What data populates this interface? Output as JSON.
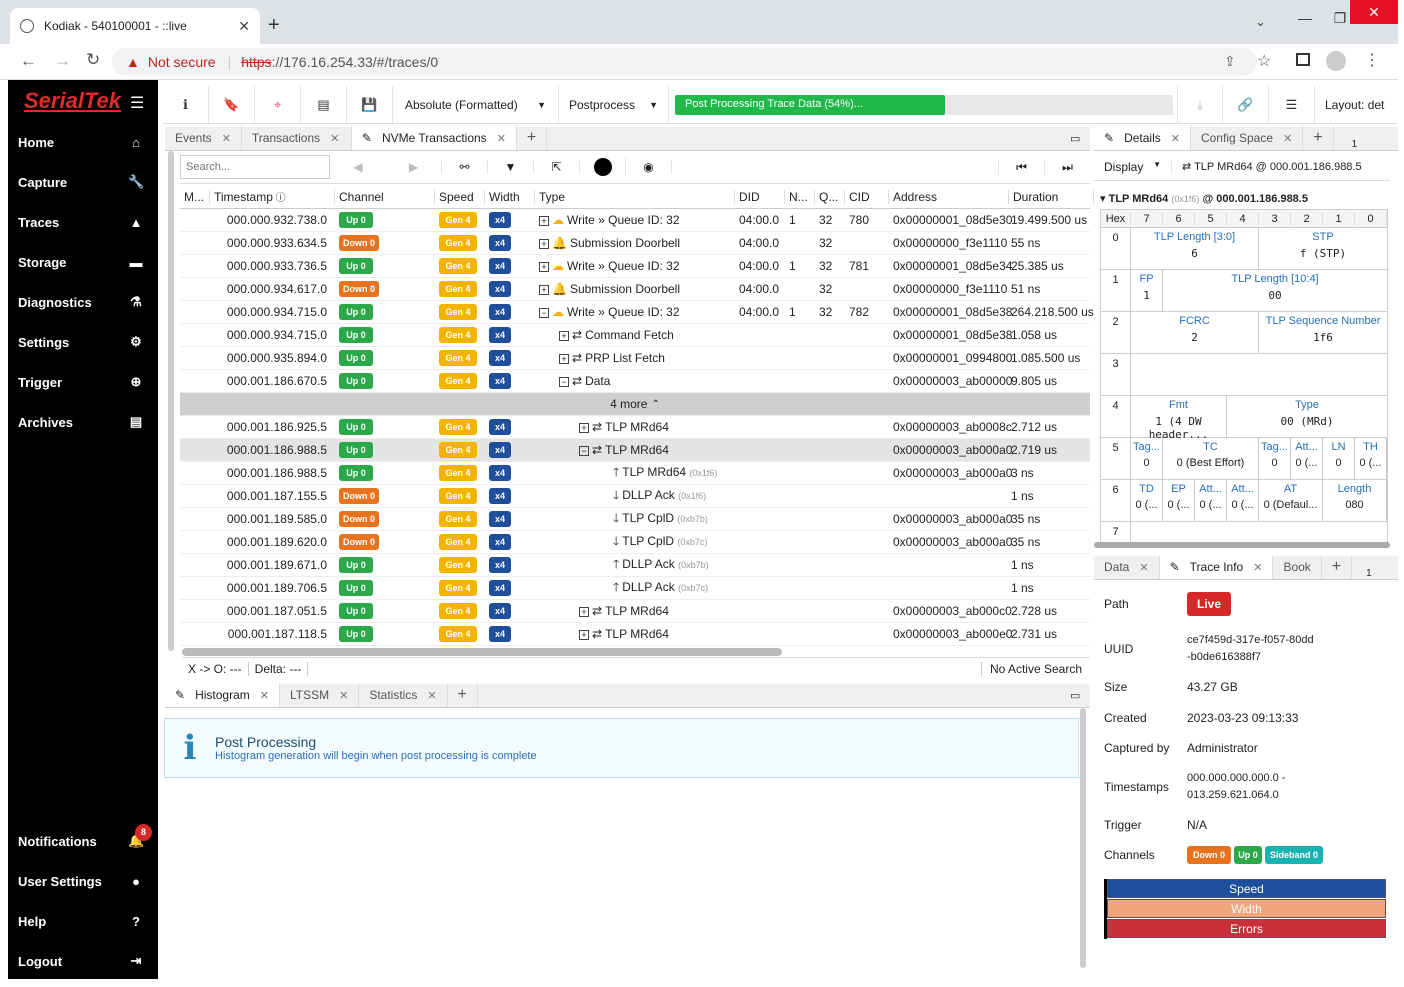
{
  "browser": {
    "tab_title": "Kodiak - 540100001 - ::live",
    "new_tab": "+",
    "not_secure": "Not secure",
    "url_scheme": "https",
    "url_rest": "://176.16.254.33/#/traces/0"
  },
  "sidebar": {
    "logo": "SerialTek",
    "menu_icon": "☰",
    "items": [
      {
        "label": "Home",
        "icon": "home-icon"
      },
      {
        "label": "Capture",
        "icon": "wrench-icon"
      },
      {
        "label": "Traces",
        "icon": "chart-icon"
      },
      {
        "label": "Storage",
        "icon": "drive-icon"
      },
      {
        "label": "Diagnostics",
        "icon": "flask-icon"
      },
      {
        "label": "Settings",
        "icon": "gear-icon"
      },
      {
        "label": "Trigger",
        "icon": "crosshair-icon"
      },
      {
        "label": "Archives",
        "icon": "archive-icon"
      }
    ],
    "bottom": [
      {
        "label": "Notifications",
        "icon": "bell-icon",
        "count": "8"
      },
      {
        "label": "User Settings",
        "icon": "user-icon"
      },
      {
        "label": "Help",
        "icon": "help-icon"
      },
      {
        "label": "Logout",
        "icon": "logout-icon"
      }
    ]
  },
  "toolbar": {
    "timestamp_mode": "Absolute (Formatted)",
    "postprocess": "Postprocess",
    "progress_text": "Post Processing Trace Data (54%)...",
    "progress": 0.54,
    "layout": "Layout: det"
  },
  "trace_tabs": [
    {
      "label": "Events"
    },
    {
      "label": "Transactions"
    },
    {
      "label": "NVMe Transactions"
    }
  ],
  "search": {
    "placeholder": "Search..."
  },
  "columns": [
    "M...",
    "Timestamp",
    "Channel",
    "Speed",
    "Width",
    "Type",
    "DID",
    "N...",
    "Q...",
    "CID",
    "Address",
    "Duration"
  ],
  "rows": [
    {
      "ts": "000.000.932.738.0",
      "ch": "Up 0",
      "sp": "Gen 4",
      "w": "x4",
      "type": "Write » Queue ID: 32",
      "exp": "+",
      "icon": "cloud",
      "did": "04:00.0",
      "n": "1",
      "q": "32",
      "cid": "780",
      "addr": "0x00000001_08d5e30",
      "dur": "19.499.500 us"
    },
    {
      "ts": "000.000.933.634.5",
      "ch": "Down 0",
      "sp": "Gen 4",
      "w": "x4",
      "type": "Submission Doorbell",
      "exp": "+",
      "icon": "bell",
      "did": "04:00.0",
      "n": "",
      "q": "32",
      "cid": "",
      "addr": "0x00000000_f3e1110",
      "dur": "55 ns"
    },
    {
      "ts": "000.000.933.736.5",
      "ch": "Up 0",
      "sp": "Gen 4",
      "w": "x4",
      "type": "Write » Queue ID: 32",
      "exp": "+",
      "icon": "cloud",
      "did": "04:00.0",
      "n": "1",
      "q": "32",
      "cid": "781",
      "addr": "0x00000001_08d5e34",
      "dur": "25.385 us"
    },
    {
      "ts": "000.000.934.617.0",
      "ch": "Down 0",
      "sp": "Gen 4",
      "w": "x4",
      "type": "Submission Doorbell",
      "exp": "+",
      "icon": "bell",
      "did": "04:00.0",
      "n": "",
      "q": "32",
      "cid": "",
      "addr": "0x00000000_f3e1110",
      "dur": "51 ns"
    },
    {
      "ts": "000.000.934.715.0",
      "ch": "Up 0",
      "sp": "Gen 4",
      "w": "x4",
      "type": "Write » Queue ID: 32",
      "exp": "−",
      "icon": "cloud",
      "did": "04:00.0",
      "n": "1",
      "q": "32",
      "cid": "782",
      "addr": "0x00000001_08d5e38",
      "dur": "264.218.500 us"
    },
    {
      "ts": "000.000.934.715.0",
      "ch": "Up 0",
      "sp": "Gen 4",
      "w": "x4",
      "type": "Command Fetch",
      "exp": "+",
      "icon": "swap",
      "indent": 1,
      "did": "",
      "n": "",
      "q": "",
      "cid": "",
      "addr": "0x00000001_08d5e38",
      "dur": "1.058 us"
    },
    {
      "ts": "000.000.935.894.0",
      "ch": "Up 0",
      "sp": "Gen 4",
      "w": "x4",
      "type": "PRP List Fetch",
      "exp": "+",
      "icon": "swap",
      "indent": 1,
      "did": "",
      "n": "",
      "q": "",
      "cid": "",
      "addr": "0x00000001_0994800",
      "dur": "1.085.500 us"
    },
    {
      "ts": "000.001.186.670.5",
      "ch": "Up 0",
      "sp": "Gen 4",
      "w": "x4",
      "type": "Data",
      "exp": "−",
      "icon": "swap",
      "indent": 1,
      "did": "",
      "n": "",
      "q": "",
      "cid": "",
      "addr": "0x00000003_ab00000",
      "dur": "9.805 us"
    }
  ],
  "more_label": "4 more",
  "rows2": [
    {
      "ts": "000.001.186.925.5",
      "ch": "Up 0",
      "sp": "Gen 4",
      "w": "x4",
      "type": "TLP MRd64",
      "exp": "+",
      "icon": "swap",
      "indent": 2,
      "sub": "",
      "addr": "0x00000003_ab0008c",
      "dur": "2.712 us"
    },
    {
      "ts": "000.001.186.988.5",
      "ch": "Up 0",
      "sp": "Gen 4",
      "w": "x4",
      "type": "TLP MRd64",
      "exp": "−",
      "icon": "swap",
      "indent": 2,
      "sub": "",
      "addr": "0x00000003_ab000a0",
      "dur": "2.719 us",
      "sel": true
    },
    {
      "ts": "000.001.186.988.5",
      "ch": "Up 0",
      "sp": "Gen 4",
      "w": "x4",
      "type": "TLP MRd64",
      "exp": "",
      "icon": "up",
      "indent": 3,
      "sub": "(0x1f6)",
      "addr": "0x00000003_ab000a0",
      "dur": "3 ns"
    },
    {
      "ts": "000.001.187.155.5",
      "ch": "Down 0",
      "sp": "Gen 4",
      "w": "x4",
      "type": "DLLP Ack",
      "exp": "",
      "icon": "down",
      "indent": 3,
      "sub": "(0x1f6)",
      "addr": "",
      "dur": "1 ns"
    },
    {
      "ts": "000.001.189.585.0",
      "ch": "Down 0",
      "sp": "Gen 4",
      "w": "x4",
      "type": "TLP CplD",
      "exp": "",
      "icon": "down",
      "indent": 3,
      "sub": "(0xb7b)",
      "addr": "0x00000003_ab000a0",
      "dur": "35 ns"
    },
    {
      "ts": "000.001.189.620.0",
      "ch": "Down 0",
      "sp": "Gen 4",
      "w": "x4",
      "type": "TLP CplD",
      "exp": "",
      "icon": "down",
      "indent": 3,
      "sub": "(0xb7c)",
      "addr": "0x00000003_ab000a0",
      "dur": "35 ns"
    },
    {
      "ts": "000.001.189.671.0",
      "ch": "Up 0",
      "sp": "Gen 4",
      "w": "x4",
      "type": "DLLP Ack",
      "exp": "",
      "icon": "up",
      "indent": 3,
      "sub": "(0xb7b)",
      "addr": "",
      "dur": "1 ns"
    },
    {
      "ts": "000.001.189.706.5",
      "ch": "Up 0",
      "sp": "Gen 4",
      "w": "x4",
      "type": "DLLP Ack",
      "exp": "",
      "icon": "up",
      "indent": 3,
      "sub": "(0xb7c)",
      "addr": "",
      "dur": "1 ns"
    },
    {
      "ts": "000.001.187.051.5",
      "ch": "Up 0",
      "sp": "Gen 4",
      "w": "x4",
      "type": "TLP MRd64",
      "exp": "+",
      "icon": "swap",
      "indent": 2,
      "sub": "",
      "addr": "0x00000003_ab000c0",
      "dur": "2.728 us"
    },
    {
      "ts": "000.001.187.118.5",
      "ch": "Up 0",
      "sp": "Gen 4",
      "w": "x4",
      "type": "TLP MRd64",
      "exp": "+",
      "icon": "swap",
      "indent": 2,
      "sub": "",
      "addr": "0x00000003_ab000e0",
      "dur": "2.731 us"
    }
  ],
  "statusbar": {
    "xo": "X -> O: ---",
    "delta": "Delta: ---",
    "search": "No Active Search"
  },
  "bottom_tabs": [
    {
      "label": "Histogram"
    },
    {
      "label": "LTSSM"
    },
    {
      "label": "Statistics"
    }
  ],
  "info": {
    "title": "Post Processing",
    "text": "Histogram generation will begin when post processing is complete"
  },
  "details": {
    "tabs": [
      "Details",
      "Config Space"
    ],
    "display": "Display",
    "tlp_dropdown": "TLP MRd64 @ 000.001.186.988.5",
    "header_name": "TLP MRd64",
    "header_id": "(0x1f6)",
    "header_ts": "@ 000.001.186.988.5",
    "page_num": "1",
    "hex_header": [
      "Hex",
      "7",
      "6",
      "5",
      "4",
      "3",
      "2",
      "1",
      "0"
    ],
    "r0": {
      "idx": "0",
      "a_lbl": "TLP Length [3:0]",
      "a_val": "6",
      "b_lbl": "STP",
      "b_val": "f (STP)"
    },
    "r1": {
      "idx": "1",
      "a_lbl": "FP",
      "a_val": "1",
      "b_lbl": "TLP Length [10:4]",
      "b_val": "00"
    },
    "r2": {
      "idx": "2",
      "a_lbl": "FCRC",
      "a_val": "2",
      "b_lbl": "TLP Sequence Number",
      "b_val": "1f6"
    },
    "r3": {
      "idx": "3"
    },
    "r4": {
      "idx": "4",
      "a_lbl": "Fmt",
      "a_val": "1 (4 DW header...",
      "b_lbl": "Type",
      "b_val": "00 (MRd)"
    },
    "r5": {
      "idx": "5",
      "c": [
        [
          "Tag...",
          "0"
        ],
        [
          "TC",
          "0 (Best Effort)"
        ],
        [
          "Tag...",
          "0"
        ],
        [
          "Att...",
          "0 (..."
        ],
        [
          "LN",
          "0"
        ],
        [
          "TH",
          "0 (..."
        ]
      ]
    },
    "r6": {
      "idx": "6",
      "c": [
        [
          "TD",
          "0 (..."
        ],
        [
          "EP",
          "0 (..."
        ],
        [
          "Att...",
          "0 (..."
        ],
        [
          "Att...",
          "0 (..."
        ],
        [
          "AT",
          "0 (Defaul..."
        ],
        [
          "Length",
          "080"
        ]
      ]
    },
    "r7": {
      "idx": "7"
    }
  },
  "traceinfo": {
    "tabs": [
      "Data",
      "Trace Info",
      "Book"
    ],
    "page_num": "1",
    "path_label": "Path",
    "path_value": "Live",
    "uuid_label": "UUID",
    "uuid_value": "ce7f459d-317e-f057-80dd-b0de616388f7",
    "size_label": "Size",
    "size_value": "43.27 GB",
    "created_label": "Created",
    "created_value": "2023-03-23 09:13:33",
    "captured_label": "Captured by",
    "captured_value": "Administrator",
    "ts_label": "Timestamps",
    "ts_value": "000.000.000.000.0 - 013.259.621.064.0",
    "trigger_label": "Trigger",
    "trigger_value": "N/A",
    "channels_label": "Channels",
    "channels": [
      "Down 0",
      "Up 0",
      "Sideband 0"
    ],
    "legend": [
      "Speed",
      "Width",
      "Errors"
    ],
    "legend_colors": [
      "#1f4f9c",
      "#f0a57a",
      "#c8303a"
    ]
  }
}
